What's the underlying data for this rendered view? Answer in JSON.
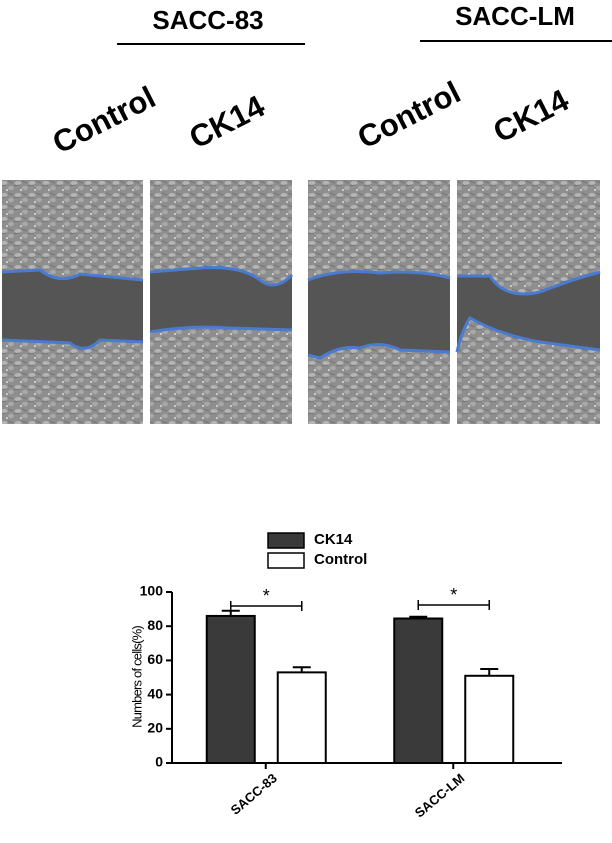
{
  "figure_labels": {
    "groups": [
      "SACC-83",
      "SACC-LM"
    ],
    "conditions": [
      "Control",
      "CK14",
      "Control",
      "CK14"
    ]
  },
  "chart_data": {
    "type": "bar",
    "ylabel": "Numbers of cells(%)",
    "categories": [
      "SACC-83",
      "SACC-LM"
    ],
    "series": [
      {
        "name": "CK14",
        "color": "#3a3a3a",
        "values": [
          86,
          84.5
        ],
        "errors": [
          3,
          1
        ]
      },
      {
        "name": "Control",
        "color": "#ffffff",
        "values": [
          53,
          51
        ],
        "errors": [
          3,
          4
        ]
      }
    ],
    "annotations": [
      "*",
      "*"
    ],
    "ylim": [
      0,
      100
    ],
    "yticks": [
      0,
      20,
      40,
      60,
      80,
      100
    ]
  }
}
